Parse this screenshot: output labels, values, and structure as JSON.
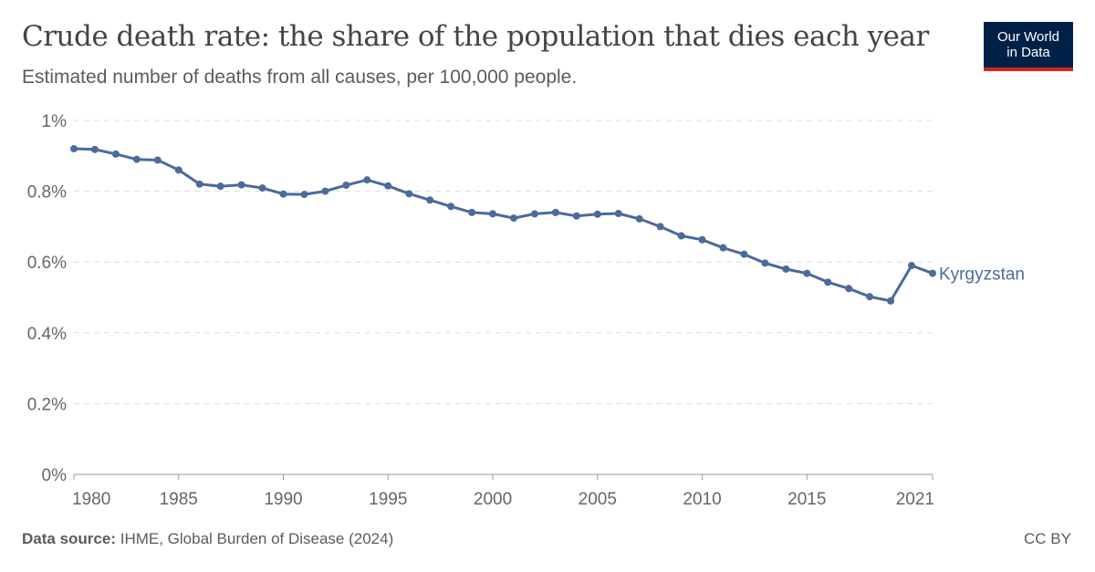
{
  "header": {
    "title": "Crude death rate: the share of the population that dies each year",
    "subtitle": "Estimated number of deaths from all causes, per 100,000 people."
  },
  "logo": {
    "line1": "Our World",
    "line2": "in Data"
  },
  "footer": {
    "source_label": "Data source:",
    "source_text": "IHME, Global Burden of Disease (2024)",
    "license": "CC BY"
  },
  "colors": {
    "series": "#4c6a9c",
    "grid": "#dddddd",
    "axis": "#666666"
  },
  "chart_data": {
    "type": "line",
    "title": "Crude death rate: the share of the population that dies each year",
    "subtitle": "Estimated number of deaths from all causes, per 100,000 people.",
    "xlabel": "",
    "ylabel": "",
    "xlim": [
      1980,
      2021
    ],
    "ylim": [
      0,
      1
    ],
    "x_ticks": [
      1980,
      1985,
      1990,
      1995,
      2000,
      2005,
      2010,
      2015,
      2021
    ],
    "y_ticks": [
      0,
      0.2,
      0.4,
      0.6,
      0.8,
      1
    ],
    "y_tick_labels": [
      "0%",
      "0.2%",
      "0.4%",
      "0.6%",
      "0.8%",
      "1%"
    ],
    "grid": "horizontal dashed",
    "legend": "inline label at line end",
    "series": [
      {
        "name": "Kyrgyzstan",
        "x": [
          1980,
          1981,
          1982,
          1983,
          1984,
          1985,
          1986,
          1987,
          1988,
          1989,
          1990,
          1991,
          1992,
          1993,
          1994,
          1995,
          1996,
          1997,
          1998,
          1999,
          2000,
          2001,
          2002,
          2003,
          2004,
          2005,
          2006,
          2007,
          2008,
          2009,
          2010,
          2011,
          2012,
          2013,
          2014,
          2015,
          2016,
          2017,
          2018,
          2019,
          2020,
          2021
        ],
        "values": [
          0.92,
          0.918,
          0.905,
          0.89,
          0.888,
          0.86,
          0.82,
          0.814,
          0.818,
          0.809,
          0.792,
          0.791,
          0.8,
          0.817,
          0.832,
          0.815,
          0.793,
          0.775,
          0.757,
          0.74,
          0.736,
          0.724,
          0.736,
          0.74,
          0.73,
          0.735,
          0.737,
          0.722,
          0.7,
          0.674,
          0.663,
          0.64,
          0.622,
          0.597,
          0.58,
          0.568,
          0.543,
          0.525,
          0.502,
          0.49,
          0.59,
          0.568
        ]
      }
    ]
  }
}
